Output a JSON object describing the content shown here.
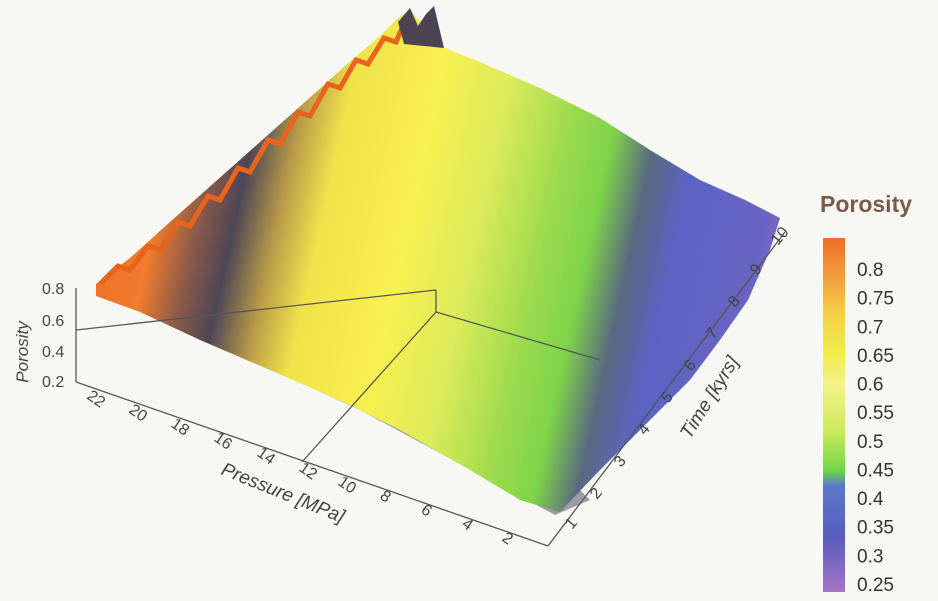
{
  "chart_data": {
    "type": "surface3d",
    "title": "",
    "x_axis": {
      "label": "Pressure [MPa]",
      "ticks": [
        "22",
        "20",
        "18",
        "16",
        "14",
        "12",
        "10",
        "8",
        "6",
        "4",
        "2"
      ]
    },
    "y_axis": {
      "label": "Time [kyrs]",
      "ticks": [
        "1",
        "2",
        "3",
        "4",
        "5",
        "6",
        "7",
        "8",
        "9",
        "10"
      ]
    },
    "z_axis": {
      "label": "Porosity",
      "ticks": [
        "0.8",
        "0.6",
        "0.4",
        "0.2"
      ]
    },
    "colorbar": {
      "title": "Porosity",
      "ticks": [
        "0.8",
        "0.75",
        "0.7",
        "0.65",
        "0.6",
        "0.55",
        "0.5",
        "0.45",
        "0.4",
        "0.35",
        "0.3",
        "0.25"
      ],
      "colors": [
        "#ee7a2e",
        "#f2a040",
        "#f5c848",
        "#eee84a",
        "#f2ef7a",
        "#e6ef6a",
        "#c6e856",
        "#7ed848",
        "#6878c8",
        "#5a60c0",
        "#6460b8",
        "#9a6cc0"
      ]
    }
  }
}
